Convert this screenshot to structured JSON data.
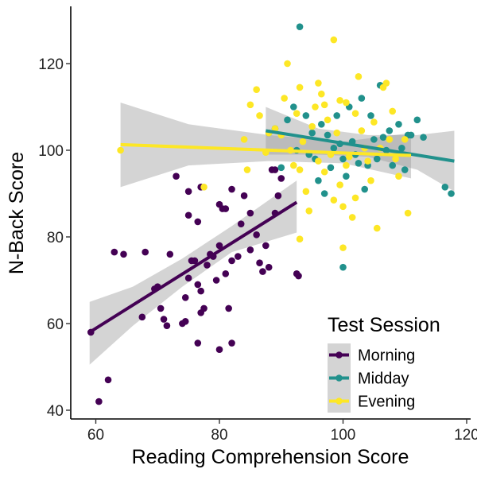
{
  "chart_data": {
    "type": "scatter",
    "title": "",
    "xlabel": "Reading Comprehension Score",
    "ylabel": "N-Back Score",
    "xlim": [
      55,
      120
    ],
    "ylim": [
      38,
      133
    ],
    "xticks": [
      60,
      80,
      100,
      120
    ],
    "yticks": [
      40,
      60,
      80,
      100,
      120
    ],
    "grid": false,
    "legend": {
      "title": "Test Session",
      "placement": "bottom-right"
    },
    "series": [
      {
        "name": "Morning",
        "color": "#440154",
        "fit": {
          "x": [
            59,
            92.5
          ],
          "y": [
            58,
            88
          ]
        },
        "band": {
          "x": [
            59,
            66,
            74,
            82,
            92.5
          ],
          "upper": [
            65,
            68.5,
            75,
            82.5,
            93
          ],
          "lower": [
            50.5,
            59.5,
            68.5,
            76.5,
            81
          ]
        },
        "points": [
          [
            59.2,
            58
          ],
          [
            60.5,
            42
          ],
          [
            62,
            47
          ],
          [
            63,
            76.5
          ],
          [
            64.5,
            76
          ],
          [
            67.5,
            61.5
          ],
          [
            68,
            76.5
          ],
          [
            69.5,
            68
          ],
          [
            70,
            68.5
          ],
          [
            70.5,
            63.5
          ],
          [
            71,
            61
          ],
          [
            71.5,
            59.5
          ],
          [
            72,
            76
          ],
          [
            73,
            94
          ],
          [
            74,
            60
          ],
          [
            74.5,
            66
          ],
          [
            74.5,
            60.5
          ],
          [
            75,
            90.5
          ],
          [
            75,
            85
          ],
          [
            75,
            70.5
          ],
          [
            75.5,
            74.5
          ],
          [
            76,
            74.5
          ],
          [
            76.5,
            83.5
          ],
          [
            76.5,
            69
          ],
          [
            76.5,
            55.5
          ],
          [
            77,
            91.5
          ],
          [
            77,
            67.5
          ],
          [
            77,
            62.5
          ],
          [
            77.5,
            63.5
          ],
          [
            78,
            73.5
          ],
          [
            78.5,
            76
          ],
          [
            79,
            75.5
          ],
          [
            79.5,
            70
          ],
          [
            80,
            87.5
          ],
          [
            80,
            78
          ],
          [
            80,
            54
          ],
          [
            80.5,
            86.5
          ],
          [
            81,
            86.5
          ],
          [
            81,
            71.5
          ],
          [
            81.5,
            63.5
          ],
          [
            82,
            91
          ],
          [
            82,
            74.5
          ],
          [
            82,
            55.5
          ],
          [
            83,
            75.5
          ],
          [
            83.5,
            83
          ],
          [
            84,
            89.5
          ],
          [
            85,
            85.5
          ],
          [
            85,
            77
          ],
          [
            86,
            80.5
          ],
          [
            86.5,
            74
          ],
          [
            87,
            72
          ],
          [
            87.5,
            78
          ],
          [
            88,
            73
          ],
          [
            88.5,
            95.5
          ],
          [
            89,
            95.5
          ],
          [
            89,
            85.5
          ],
          [
            89.5,
            89.5
          ],
          [
            90,
            93.5
          ],
          [
            92.5,
            71.5
          ],
          [
            92.8,
            71
          ]
        ]
      },
      {
        "name": "Midday",
        "color": "#21918c",
        "fit": {
          "x": [
            87.5,
            118
          ],
          "y": [
            104.5,
            97.5
          ]
        },
        "band": {
          "x": [
            87.5,
            96,
            104,
            112,
            118
          ],
          "upper": [
            110,
            105,
            103.5,
            103.5,
            104.5
          ],
          "lower": [
            99,
            99,
            98.5,
            95.5,
            90.5
          ]
        },
        "points": [
          [
            88,
            104
          ],
          [
            89,
            105
          ],
          [
            90,
            96
          ],
          [
            91,
            107
          ],
          [
            92,
            110
          ],
          [
            92.5,
            100
          ],
          [
            93,
            128.5
          ],
          [
            94,
            108
          ],
          [
            94.5,
            99
          ],
          [
            95,
            104
          ],
          [
            95.5,
            98
          ],
          [
            96,
            93
          ],
          [
            96.5,
            106
          ],
          [
            97,
            90
          ],
          [
            97.5,
            103.5
          ],
          [
            98,
            96
          ],
          [
            98.5,
            100.5
          ],
          [
            99,
            108
          ],
          [
            99.5,
            101.5
          ],
          [
            100,
            98
          ],
          [
            100,
            73
          ],
          [
            100.5,
            94
          ],
          [
            101,
            110
          ],
          [
            101.5,
            102
          ],
          [
            102,
            99
          ],
          [
            102.5,
            97
          ],
          [
            103,
            112
          ],
          [
            103.5,
            91
          ],
          [
            104,
            96.5
          ],
          [
            104.5,
            108
          ],
          [
            105,
            102.5
          ],
          [
            105.5,
            98
          ],
          [
            106,
            115
          ],
          [
            106.5,
            103
          ],
          [
            107,
            100
          ],
          [
            107.5,
            104.5
          ],
          [
            108,
            96.5
          ],
          [
            109,
            106
          ],
          [
            109.5,
            100.5
          ],
          [
            110,
            95.5
          ],
          [
            110.5,
            103.5
          ],
          [
            111,
            103.5
          ],
          [
            112,
            107
          ],
          [
            113,
            103
          ],
          [
            116.5,
            91.5
          ],
          [
            117.5,
            90
          ]
        ]
      },
      {
        "name": "Evening",
        "color": "#fde725",
        "fit": {
          "x": [
            64,
            111
          ],
          "y": [
            101.3,
            98.8
          ]
        },
        "band": {
          "x": [
            64,
            75,
            88,
            100,
            111
          ],
          "upper": [
            111,
            106,
            103.5,
            102,
            104
          ],
          "lower": [
            91.5,
            96.5,
            97.5,
            97,
            93.5
          ]
        },
        "points": [
          [
            64,
            100
          ],
          [
            77.5,
            91.5
          ],
          [
            84,
            102.5
          ],
          [
            84.5,
            95.5
          ],
          [
            85,
            110.5
          ],
          [
            86,
            114
          ],
          [
            86.5,
            108
          ],
          [
            87.5,
            99.5
          ],
          [
            88,
            104
          ],
          [
            89,
            105
          ],
          [
            90,
            103.5
          ],
          [
            90.5,
            112
          ],
          [
            91,
            120
          ],
          [
            91.5,
            100
          ],
          [
            92,
            96.5
          ],
          [
            92.5,
            108.5
          ],
          [
            93,
            114.5
          ],
          [
            93,
            79.5
          ],
          [
            93.5,
            102
          ],
          [
            94,
            90.5
          ],
          [
            94.5,
            86
          ],
          [
            95,
            105.5
          ],
          [
            95.5,
            110
          ],
          [
            96,
            115.5
          ],
          [
            96,
            97.5
          ],
          [
            96.5,
            113
          ],
          [
            97,
            110.5
          ],
          [
            97.5,
            107
          ],
          [
            98,
            99
          ],
          [
            98.5,
            125.5
          ],
          [
            98.5,
            88.5
          ],
          [
            99,
            104
          ],
          [
            99.5,
            111.5
          ],
          [
            99.5,
            92
          ],
          [
            100,
            77.5
          ],
          [
            100,
            87
          ],
          [
            100.5,
            111
          ],
          [
            101,
            98.5
          ],
          [
            101.5,
            84.5
          ],
          [
            102,
            108.5
          ],
          [
            102,
            89
          ],
          [
            102.5,
            117
          ],
          [
            103,
            104.5
          ],
          [
            103.5,
            100.5
          ],
          [
            104,
            97.5
          ],
          [
            104.5,
            93
          ],
          [
            105,
            106.5
          ],
          [
            105.5,
            82
          ],
          [
            106,
            100.5
          ],
          [
            106.5,
            114.5
          ],
          [
            107,
            115.5
          ],
          [
            107.5,
            102.5
          ],
          [
            108,
            109
          ],
          [
            108.5,
            98
          ],
          [
            109,
            94
          ],
          [
            110,
            102.5
          ],
          [
            110.5,
            85.5
          ],
          [
            93,
            95.5
          ],
          [
            97,
            95
          ],
          [
            100.5,
            96.5
          ]
        ]
      }
    ]
  }
}
